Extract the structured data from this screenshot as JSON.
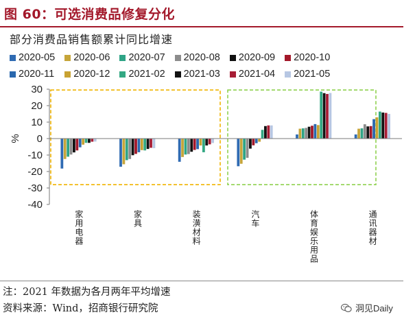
{
  "figure_title": "图 60：可选消费品修复分化",
  "subtitle": "部分消费品销售额累计同比增速",
  "footer": {
    "note": "注：2021 年数据为各月两年平均增速",
    "source": "资料来源：Wind，招商银行研究院"
  },
  "watermark": {
    "text": "洞见Daily",
    "icon": "wechat-icon"
  },
  "colors": {
    "series": [
      "#2f6bb3",
      "#c6a53a",
      "#2fa486",
      "#8c8c8c",
      "#111111",
      "#a3182a",
      "#2a68ae",
      "#c8a232",
      "#33a883",
      "#121212",
      "#a71d35",
      "#b7c7e3"
    ],
    "title": "#a3182a",
    "box_left": "#f0b400",
    "box_right": "#8fd14f"
  },
  "chart_data": {
    "type": "bar",
    "title": "部分消费品销售额累计同比增速",
    "ylabel": "%",
    "xlabel": "",
    "ylim": [
      -40,
      30
    ],
    "yticks": [
      -40,
      -30,
      -20,
      -10,
      0,
      10,
      20,
      30
    ],
    "grid": false,
    "legend_position": "top",
    "categories": [
      "家用电器",
      "家具",
      "装潢材料",
      "汽车",
      "体育娱乐用品",
      "通讯器材"
    ],
    "series": [
      {
        "name": "2020-05",
        "values": [
          -18.2,
          -17.1,
          -14.1,
          -16.8,
          2.5,
          2.5
        ]
      },
      {
        "name": "2020-06",
        "values": [
          -12.4,
          -15.6,
          -11.2,
          -15.3,
          6.0,
          6.0
        ]
      },
      {
        "name": "2020-07",
        "values": [
          -11.0,
          -13.1,
          -9.7,
          -12.8,
          6.2,
          6.2
        ]
      },
      {
        "name": "2020-08",
        "values": [
          -9.7,
          -12.4,
          -9.4,
          -11.7,
          6.5,
          8.7
        ]
      },
      {
        "name": "2020-09",
        "values": [
          -8.4,
          -10.1,
          -8.0,
          -6.1,
          7.2,
          7.4
        ]
      },
      {
        "name": "2020-10",
        "values": [
          -7.2,
          -9.3,
          -6.9,
          -4.1,
          7.8,
          7.6
        ]
      },
      {
        "name": "2020-11",
        "values": [
          -5.3,
          -8.3,
          -6.4,
          -2.8,
          8.8,
          11.8
        ]
      },
      {
        "name": "2020-12",
        "values": [
          -3.7,
          -7.0,
          -4.2,
          -1.9,
          8.2,
          12.9
        ]
      },
      {
        "name": "2021-02",
        "values": [
          -2.6,
          -7.2,
          -8.3,
          5.3,
          28.5,
          16.4
        ]
      },
      {
        "name": "2021-03",
        "values": [
          -2.6,
          -6.3,
          -4.2,
          7.6,
          27.6,
          15.8
        ]
      },
      {
        "name": "2021-04",
        "values": [
          -1.9,
          -5.6,
          -3.5,
          8.0,
          27.1,
          15.6
        ]
      },
      {
        "name": "2021-05",
        "values": [
          -1.8,
          -5.8,
          -2.7,
          8.0,
          27.7,
          15.0
        ]
      }
    ],
    "highlight_boxes": [
      {
        "categories": [
          "家用电器",
          "家具",
          "装潢材料"
        ],
        "y_range": [
          -28,
          29.5
        ],
        "color": "#f0b400",
        "style": "dashed"
      },
      {
        "categories": [
          "汽车",
          "体育娱乐用品",
          "通讯器材"
        ],
        "y_range": [
          -28,
          29.5
        ],
        "color": "#8fd14f",
        "style": "dashed"
      }
    ]
  }
}
